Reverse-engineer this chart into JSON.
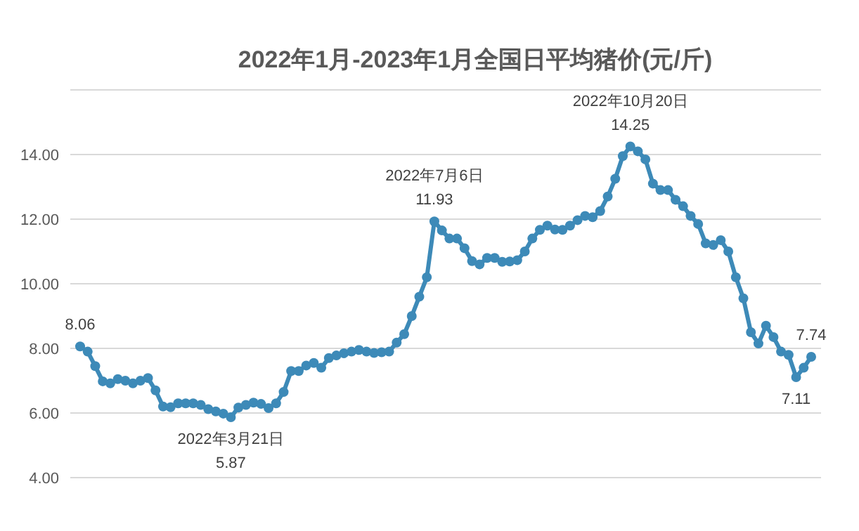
{
  "chart_data": {
    "type": "line",
    "title": "2022年1月-2023年1月全国日平均猪价(元/斤)",
    "marker": "circle",
    "grid": "y",
    "tick_labels": "y",
    "categories": [
      null,
      null,
      null,
      null,
      null,
      null,
      null,
      null,
      null,
      null,
      null,
      null,
      null,
      null,
      null,
      null,
      null,
      null,
      null,
      null,
      null,
      null,
      null,
      null,
      null,
      null,
      null,
      null,
      null,
      null,
      null,
      null,
      null,
      null,
      null,
      null,
      null,
      null,
      null,
      null,
      null,
      null,
      null,
      null,
      null,
      null,
      null,
      null,
      null,
      null,
      null,
      null,
      null,
      null,
      null,
      null,
      null,
      null,
      null,
      null,
      null,
      null,
      null,
      null,
      null,
      null,
      null,
      null,
      null,
      null,
      null,
      null,
      null,
      null,
      null,
      null,
      null,
      null,
      null,
      null,
      null,
      null,
      null,
      null,
      null,
      null,
      null,
      null,
      null,
      null,
      null,
      null,
      null,
      null,
      null,
      null,
      null,
      null
    ],
    "ylim": [
      4,
      16
    ],
    "yticks": [
      {
        "value": 4,
        "label": "4.00"
      },
      {
        "value": 6,
        "label": "6.00"
      },
      {
        "value": 8,
        "label": "8.00"
      },
      {
        "value": 10,
        "label": "10.00"
      },
      {
        "value": 12,
        "label": "12.00"
      },
      {
        "value": 14,
        "label": "14.00"
      },
      {
        "value": 16,
        "label": null
      }
    ],
    "series": [
      {
        "color": "#3d8ab8",
        "values": [
          8.06,
          7.9,
          7.45,
          6.98,
          6.92,
          7.05,
          7.0,
          6.92,
          7.0,
          7.08,
          6.7,
          6.2,
          6.18,
          6.3,
          6.3,
          6.3,
          6.25,
          6.12,
          6.05,
          5.98,
          5.87,
          6.17,
          6.25,
          6.32,
          6.28,
          6.15,
          6.3,
          6.65,
          7.3,
          7.3,
          7.47,
          7.55,
          7.4,
          7.7,
          7.78,
          7.85,
          7.9,
          7.95,
          7.9,
          7.86,
          7.88,
          7.9,
          8.18,
          8.44,
          9.0,
          9.6,
          10.2,
          11.93,
          11.65,
          11.4,
          11.4,
          11.1,
          10.7,
          10.6,
          10.8,
          10.8,
          10.68,
          10.69,
          10.73,
          11.0,
          11.4,
          11.67,
          11.8,
          11.68,
          11.67,
          11.8,
          11.97,
          12.1,
          12.06,
          12.25,
          12.7,
          13.25,
          13.95,
          14.25,
          14.1,
          13.85,
          13.1,
          12.9,
          12.9,
          12.6,
          12.4,
          12.1,
          11.85,
          11.25,
          11.2,
          11.35,
          11.0,
          10.2,
          9.55,
          8.5,
          8.15,
          8.7,
          8.35,
          7.9,
          7.8,
          7.11,
          7.4,
          7.74
        ]
      }
    ],
    "annotations": [
      {
        "text": "8.06",
        "y": 8.06
      },
      {
        "text": "2022年3月21日\n5.87",
        "y": 5.87
      },
      {
        "text": "2022年7月6日\n11.93",
        "y": 11.93
      },
      {
        "text": "2022年10月20日\n14.25",
        "y": 14.25
      },
      {
        "text": "7.11",
        "y": 7.11
      },
      {
        "text": "7.74",
        "y": 7.74
      }
    ]
  }
}
